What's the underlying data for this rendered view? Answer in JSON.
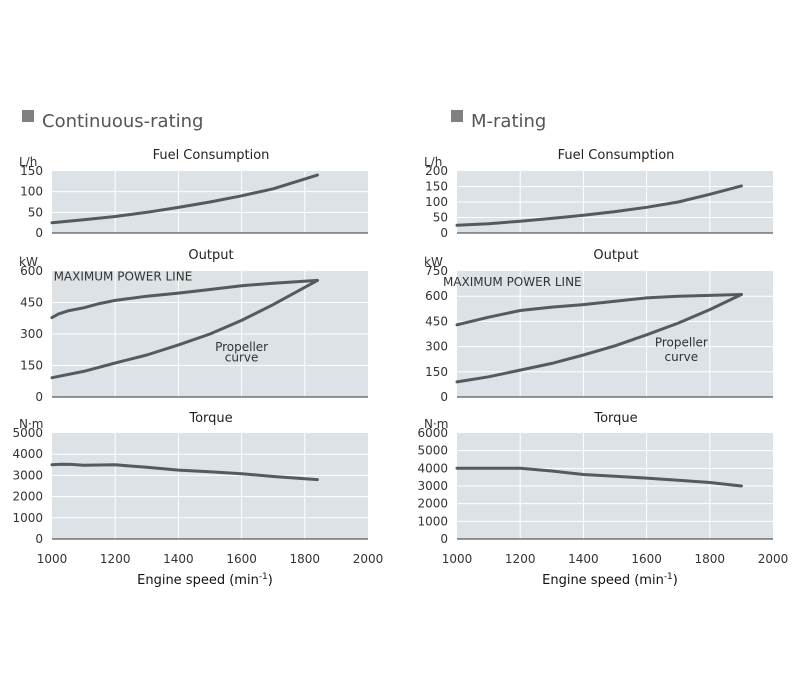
{
  "x_axis": {
    "label": "Engine speed (min",
    "label_superscript": "-1",
    "label_close": ")",
    "range": [
      1000,
      2000
    ],
    "ticks": [
      1000,
      1200,
      1400,
      1600,
      1800,
      2000
    ],
    "tick_labels": [
      "1000",
      "1200",
      "1400",
      "1600",
      "1800",
      "2000"
    ]
  },
  "chart_data": [
    {
      "type": "line",
      "section": "Continuous-rating",
      "title": "Fuel Consumption",
      "unit": "L/h",
      "ylim": [
        0,
        150
      ],
      "yticks": [
        0,
        50,
        100,
        150
      ],
      "ytick_labels": [
        "0",
        "50",
        "100",
        "150"
      ],
      "series": [
        {
          "name": "Fuel Consumption",
          "x": [
            1000,
            1100,
            1200,
            1300,
            1400,
            1500,
            1600,
            1700,
            1840
          ],
          "y": [
            25,
            32,
            40,
            50,
            62,
            75,
            90,
            107,
            140
          ]
        }
      ]
    },
    {
      "type": "line",
      "section": "Continuous-rating",
      "title": "Output",
      "unit": "kW",
      "ylim": [
        0,
        600
      ],
      "yticks": [
        0,
        150,
        300,
        450,
        600
      ],
      "ytick_labels": [
        "0",
        "150",
        "300",
        "450",
        "600"
      ],
      "annotations": [
        {
          "text": "MAXIMUM POWER LINE",
          "x": 1005,
          "y": 555,
          "anchor": "start"
        },
        {
          "text": "Propeller",
          "x": 1600,
          "y": 220,
          "anchor": "middle"
        },
        {
          "text": "curve",
          "x": 1600,
          "y": 170,
          "anchor": "middle"
        }
      ],
      "series": [
        {
          "name": "MAXIMUM POWER LINE",
          "x": [
            1000,
            1020,
            1050,
            1100,
            1150,
            1200,
            1300,
            1400,
            1500,
            1600,
            1700,
            1840
          ],
          "y": [
            378,
            395,
            410,
            425,
            445,
            460,
            480,
            495,
            512,
            530,
            542,
            555
          ]
        },
        {
          "name": "Propeller curve",
          "x": [
            1000,
            1100,
            1200,
            1300,
            1400,
            1500,
            1600,
            1700,
            1840
          ],
          "y": [
            92,
            122,
            162,
            200,
            248,
            300,
            365,
            440,
            555
          ]
        }
      ]
    },
    {
      "type": "line",
      "section": "Continuous-rating",
      "title": "Torque",
      "unit": "N·m",
      "ylim": [
        0,
        5000
      ],
      "yticks": [
        0,
        1000,
        2000,
        3000,
        4000,
        5000
      ],
      "ytick_labels": [
        "0",
        "1000",
        "2000",
        "3000",
        "4000",
        "5000"
      ],
      "series": [
        {
          "name": "Torque",
          "x": [
            1000,
            1030,
            1060,
            1100,
            1200,
            1300,
            1400,
            1500,
            1600,
            1700,
            1840
          ],
          "y": [
            3500,
            3530,
            3520,
            3480,
            3500,
            3380,
            3250,
            3170,
            3080,
            2950,
            2800
          ]
        }
      ]
    },
    {
      "type": "line",
      "section": "M-rating",
      "title": "Fuel Consumption",
      "unit": "L/h",
      "ylim": [
        0,
        200
      ],
      "yticks": [
        0,
        50,
        100,
        150,
        200
      ],
      "ytick_labels": [
        "0",
        "50",
        "100",
        "150",
        "200"
      ],
      "series": [
        {
          "name": "Fuel Consumption",
          "x": [
            1000,
            1100,
            1200,
            1300,
            1400,
            1500,
            1600,
            1700,
            1800,
            1900
          ],
          "y": [
            25,
            30,
            38,
            47,
            57,
            69,
            83,
            100,
            125,
            152
          ]
        }
      ]
    },
    {
      "type": "line",
      "section": "M-rating",
      "title": "Output",
      "unit": "kW",
      "ylim": [
        0,
        750
      ],
      "yticks": [
        0,
        150,
        300,
        450,
        600,
        750
      ],
      "ytick_labels": [
        "0",
        "150",
        "300",
        "450",
        "600",
        "750"
      ],
      "annotations": [
        {
          "text": "MAXIMUM POWER LINE",
          "x": 1175,
          "y": 660,
          "anchor": "middle"
        },
        {
          "text": "Propeller",
          "x": 1710,
          "y": 300,
          "anchor": "middle"
        },
        {
          "text": "curve",
          "x": 1710,
          "y": 215,
          "anchor": "middle"
        }
      ],
      "series": [
        {
          "name": "MAXIMUM POWER LINE",
          "x": [
            1000,
            1100,
            1200,
            1300,
            1400,
            1500,
            1600,
            1700,
            1800,
            1900
          ],
          "y": [
            430,
            475,
            515,
            535,
            550,
            570,
            590,
            600,
            605,
            610
          ]
        },
        {
          "name": "Propeller curve",
          "x": [
            1000,
            1100,
            1200,
            1300,
            1400,
            1500,
            1600,
            1700,
            1800,
            1900
          ],
          "y": [
            90,
            120,
            160,
            200,
            250,
            305,
            370,
            440,
            520,
            610
          ]
        }
      ]
    },
    {
      "type": "line",
      "section": "M-rating",
      "title": "Torque",
      "unit": "N·m",
      "ylim": [
        0,
        6000
      ],
      "yticks": [
        0,
        1000,
        2000,
        3000,
        4000,
        5000,
        6000
      ],
      "ytick_labels": [
        "0",
        "1000",
        "2000",
        "3000",
        "4000",
        "5000",
        "6000"
      ],
      "series": [
        {
          "name": "Torque",
          "x": [
            1000,
            1100,
            1200,
            1300,
            1400,
            1500,
            1600,
            1700,
            1800,
            1900
          ],
          "y": [
            4000,
            4000,
            4000,
            3850,
            3650,
            3550,
            3450,
            3330,
            3200,
            3000
          ]
        }
      ]
    }
  ],
  "sections": [
    {
      "title": "Continuous-rating"
    },
    {
      "title": "M-rating"
    }
  ]
}
